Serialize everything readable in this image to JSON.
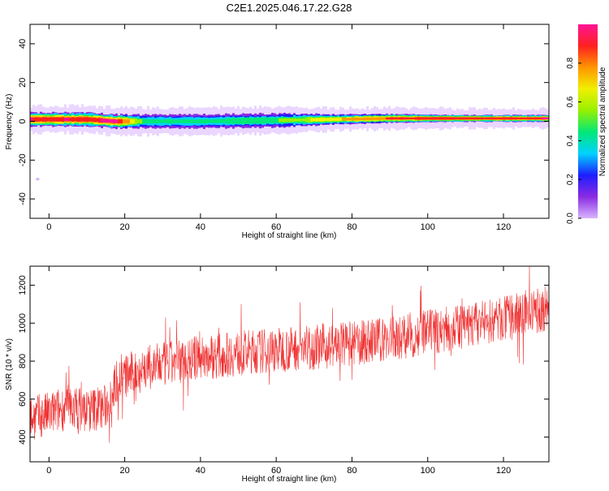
{
  "title": "C2E1.2025.046.17.22.G28",
  "colors": {
    "series_line": "#f03232",
    "axis": "#000000",
    "background": "#ffffff",
    "colormap": [
      "#d8b4ff",
      "#8a2be2",
      "#1e1eff",
      "#00d2ff",
      "#00e878",
      "#96f000",
      "#f0f000",
      "#ff9600",
      "#ff2020",
      "#ff1493"
    ]
  },
  "chart_data": [
    {
      "type": "heatmap",
      "name": "spectrogram",
      "xlabel": "Height of straight line (km)",
      "ylabel": "Frequency (Hz)",
      "xlim": [
        -5,
        132
      ],
      "ylim": [
        -50,
        50
      ],
      "xticks": [
        0,
        20,
        40,
        60,
        80,
        100,
        120
      ],
      "yticks": [
        -40,
        -20,
        0,
        20,
        40
      ],
      "colorbar": {
        "label": "Normalized spectral amplitude",
        "range": [
          0.0,
          1.0
        ],
        "ticks": [
          0.0,
          0.2,
          0.4,
          0.6,
          0.8
        ]
      },
      "band": {
        "description_points": [
          {
            "x": -5,
            "center": 1,
            "half_width": 4,
            "peak": 0.95
          },
          {
            "x": 0,
            "center": 1,
            "half_width": 4,
            "peak": 0.9
          },
          {
            "x": 4,
            "center": 1,
            "half_width": 4,
            "peak": 0.95
          },
          {
            "x": 10,
            "center": 1,
            "half_width": 4,
            "peak": 0.9
          },
          {
            "x": 17,
            "center": 0,
            "half_width": 4,
            "peak": 1.0
          },
          {
            "x": 25,
            "center": 0,
            "half_width": 4,
            "peak": 0.45
          },
          {
            "x": 40,
            "center": 0,
            "half_width": 4,
            "peak": 0.45
          },
          {
            "x": 60,
            "center": 0.5,
            "half_width": 4,
            "peak": 0.5
          },
          {
            "x": 75,
            "center": 1,
            "half_width": 3,
            "peak": 0.7
          },
          {
            "x": 90,
            "center": 1.5,
            "half_width": 2.5,
            "peak": 0.85
          },
          {
            "x": 110,
            "center": 1.5,
            "half_width": 2,
            "peak": 0.9
          },
          {
            "x": 132,
            "center": 1.5,
            "half_width": 2,
            "peak": 0.95
          }
        ],
        "outlier": {
          "x": -3,
          "y": -30
        }
      }
    },
    {
      "type": "line",
      "name": "snr",
      "xlabel": "Height of straight line (km)",
      "ylabel": "SNR (10 * v/v)",
      "xlim": [
        -5,
        132
      ],
      "ylim": [
        270,
        1300
      ],
      "xticks": [
        0,
        20,
        40,
        60,
        80,
        100,
        120
      ],
      "yticks": [
        400,
        600,
        800,
        1000,
        1200
      ],
      "trend": [
        {
          "x": -5,
          "y": 500
        },
        {
          "x": 0,
          "y": 520
        },
        {
          "x": 5,
          "y": 560
        },
        {
          "x": 10,
          "y": 540
        },
        {
          "x": 15,
          "y": 560
        },
        {
          "x": 18,
          "y": 700
        },
        {
          "x": 25,
          "y": 760
        },
        {
          "x": 40,
          "y": 820
        },
        {
          "x": 60,
          "y": 860
        },
        {
          "x": 80,
          "y": 890
        },
        {
          "x": 100,
          "y": 950
        },
        {
          "x": 120,
          "y": 1020
        },
        {
          "x": 132,
          "y": 1080
        }
      ],
      "noise_amplitude": 120
    }
  ]
}
